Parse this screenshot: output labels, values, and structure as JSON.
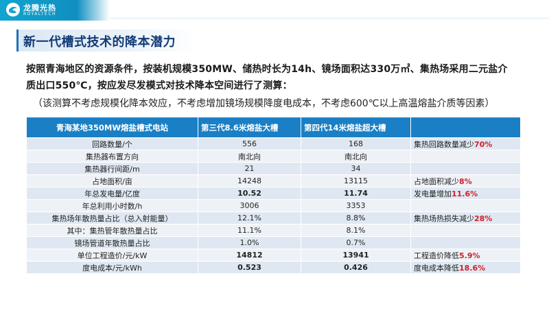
{
  "brand": {
    "name": "龙腾光热",
    "sub": "ROYALTECH"
  },
  "title": "新一代槽式技术的降本潜力",
  "paragraph": {
    "line1": "按照青海地区的资源条件，按装机规模350MW、储热时长为14h、镜场面积达330万㎡、集热场采用二元盐介",
    "line2": "质出口550℃，按应发尽发模式对技术降本空间进行了测算：",
    "note": "（该测算不考虑规模化降本效应，不考虑增加镜场规模降度电成本，不考虑600℃以上高温熔盐介质等因素）"
  },
  "table": {
    "headers": [
      "青海某地350MW熔盐槽式电站",
      "第三代8.6米熔盐大槽",
      "第四代14米熔盐超大槽",
      ""
    ],
    "rows": [
      {
        "label": "回路数量/个",
        "gen3": "556",
        "gen4": "168",
        "note": "集热回路数量减少",
        "note_hl": "70%",
        "bold": false
      },
      {
        "label": "集热器布置方向",
        "gen3": "南北向",
        "gen4": "南北向",
        "note": "",
        "note_hl": "",
        "bold": false
      },
      {
        "label": "集热器行间距/m",
        "gen3": "21",
        "gen4": "34",
        "note": "",
        "note_hl": "",
        "bold": false
      },
      {
        "label": "占地面积/亩",
        "gen3": "14248",
        "gen4": "13115",
        "note": "占地面积减少",
        "note_hl": "8%",
        "bold": false
      },
      {
        "label": "年总发电量/亿度",
        "gen3": "10.52",
        "gen4": "11.74",
        "note": "发电量增加",
        "note_hl": "11.6%",
        "bold": true
      },
      {
        "label": "年总利用小时数/h",
        "gen3": "3006",
        "gen4": "3353",
        "note": "",
        "note_hl": "",
        "bold": false
      },
      {
        "label": "集热场年散热量占比（总入射能量）",
        "gen3": "12.1%",
        "gen4": "8.8%",
        "note": "集热场热损失减少",
        "note_hl": "28%",
        "bold": false
      },
      {
        "label": "其中：集热管年散热量占比",
        "gen3": "11.1%",
        "gen4": "8.1%",
        "note": "",
        "note_hl": "",
        "bold": false
      },
      {
        "label": "镜场管道年散热量占比",
        "gen3": "1.0%",
        "gen4": "0.7%",
        "note": "",
        "note_hl": "",
        "bold": false
      },
      {
        "label": "单位工程造价/元/kW",
        "gen3": "14812",
        "gen4": "13941",
        "note": "工程造价降低",
        "note_hl": "5.9%",
        "bold": true
      },
      {
        "label": "度电成本/元/kWh",
        "gen3": "0.523",
        "gen4": "0.426",
        "note": "度电成本降低",
        "note_hl": "18.6%",
        "bold": true
      }
    ]
  },
  "colors": {
    "header_blue": "#1a7fc4",
    "title_navy": "#123a75",
    "highlight_red": "#d0202a",
    "brand_cyan": "#12a4cf"
  }
}
